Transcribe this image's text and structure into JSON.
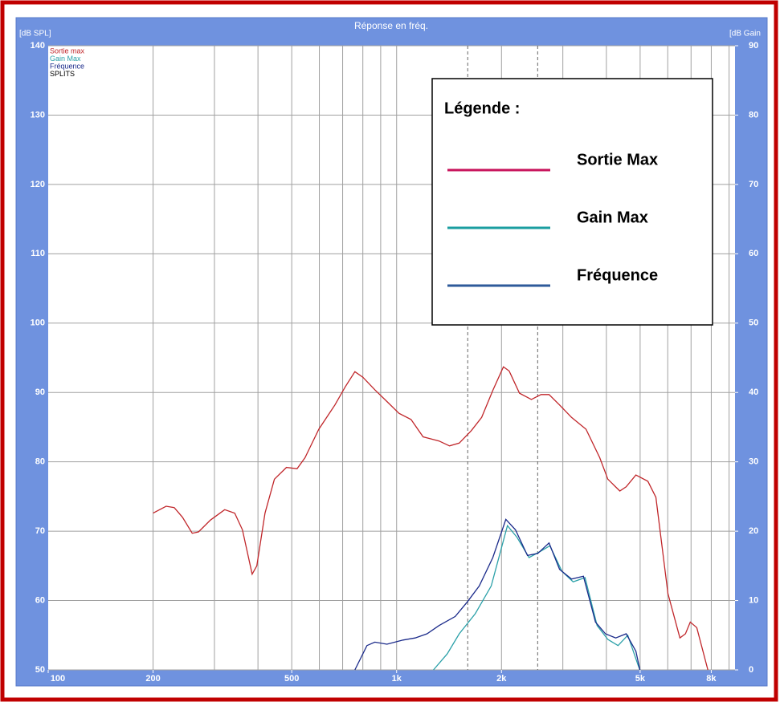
{
  "chart_data": {
    "type": "line",
    "title": "Réponse en fréq.",
    "y_label": "[dB SPL]",
    "y2_label": "[dB Gain",
    "log_x": true,
    "grid": true,
    "xlim": [
      100,
      9360
    ],
    "xticks": [
      100,
      200,
      500,
      {
        "value": 1000,
        "label": "1k"
      },
      {
        "value": 2000,
        "label": "2k"
      },
      {
        "value": 5000,
        "label": "5k"
      },
      {
        "value": 8000,
        "label": "8k"
      }
    ],
    "xgrid": [
      200,
      300,
      400,
      500,
      600,
      700,
      800,
      900,
      1000,
      2000,
      3000,
      4000,
      5000,
      6000,
      7000,
      8000,
      9000
    ],
    "dashed_lines": [
      1600,
      2540
    ],
    "ylim": [
      50,
      140
    ],
    "yticks": [
      50,
      60,
      70,
      80,
      90,
      100,
      110,
      120,
      130,
      140
    ],
    "y2lim": [
      0,
      90
    ],
    "y2ticks": [
      0,
      10,
      20,
      30,
      40,
      50,
      60,
      70,
      80,
      90
    ],
    "series": [
      {
        "name": "Sortie max",
        "color": "#c0262a",
        "x": [
          200,
          218,
          230,
          243,
          259,
          270,
          292,
          321,
          343,
          361,
          385,
          397,
          419,
          446,
          483,
          518,
          546,
          598,
          665,
          712,
          759,
          800,
          866,
          938,
          1016,
          1100,
          1191,
          1256,
          1324,
          1419,
          1513,
          1638,
          1754,
          1889,
          2026,
          2103,
          2253,
          2437,
          2597,
          2739,
          2936,
          3177,
          3496,
          3829,
          4040,
          4371,
          4560,
          4862,
          5261,
          5548,
          6009,
          6504,
          6746,
          6965,
          7268,
          7822
        ],
        "values": [
          72.6,
          73.6,
          73.4,
          72.0,
          69.7,
          69.9,
          71.6,
          73.1,
          72.6,
          70.2,
          63.8,
          65.0,
          72.6,
          77.5,
          79.2,
          79.0,
          80.6,
          84.7,
          88.2,
          90.8,
          93.0,
          92.2,
          90.4,
          88.7,
          87.0,
          86.1,
          83.6,
          83.3,
          83.0,
          82.3,
          82.7,
          84.5,
          86.4,
          90.3,
          93.7,
          93.1,
          89.9,
          89.0,
          89.7,
          89.7,
          88.2,
          86.4,
          84.7,
          80.6,
          77.5,
          75.8,
          76.4,
          78.1,
          77.2,
          74.9,
          61.0,
          54.6,
          55.2,
          56.9,
          56.1,
          50.0
        ]
      },
      {
        "name": "Gain Max",
        "color": "#2aa0a8",
        "axis": "y2",
        "x": [
          1276,
          1397,
          1513,
          1681,
          1869,
          2080,
          2217,
          2400,
          2568,
          2753,
          2983,
          3211,
          3474,
          3761,
          4040,
          4321,
          4607,
          4939,
          4991
        ],
        "values": [
          0,
          2.3,
          5.2,
          8.1,
          12.1,
          20.8,
          19.1,
          16.2,
          17.0,
          17.9,
          14.2,
          12.7,
          13.3,
          6.4,
          4.4,
          3.5,
          5.0,
          0.6,
          0
        ]
      },
      {
        "name": "Fréquence",
        "color": "#1a2a8a",
        "axis": "y2",
        "x": [
          759,
          822,
          866,
          938,
          1043,
          1130,
          1223,
          1324,
          1473,
          1595,
          1727,
          1889,
          2058,
          2194,
          2374,
          2542,
          2739,
          2936,
          3177,
          3438,
          3722,
          3975,
          4255,
          4560,
          4862,
          4991
        ],
        "values": [
          0,
          3.5,
          4.0,
          3.7,
          4.3,
          4.6,
          5.2,
          6.4,
          7.7,
          9.8,
          12.1,
          16.2,
          21.7,
          20.2,
          16.5,
          16.8,
          18.3,
          14.5,
          13.1,
          13.5,
          6.9,
          5.2,
          4.6,
          5.2,
          2.7,
          0
        ]
      }
    ],
    "extra_legend_entry": "SPLITS",
    "legend_box": {
      "title": "Légende :",
      "entries": [
        {
          "label": "Sortie Max",
          "color": "#c8145c"
        },
        {
          "label": "Gain Max",
          "color": "#1a9ea0"
        },
        {
          "label": "Fréquence",
          "color": "#2e5a9a"
        }
      ]
    }
  }
}
